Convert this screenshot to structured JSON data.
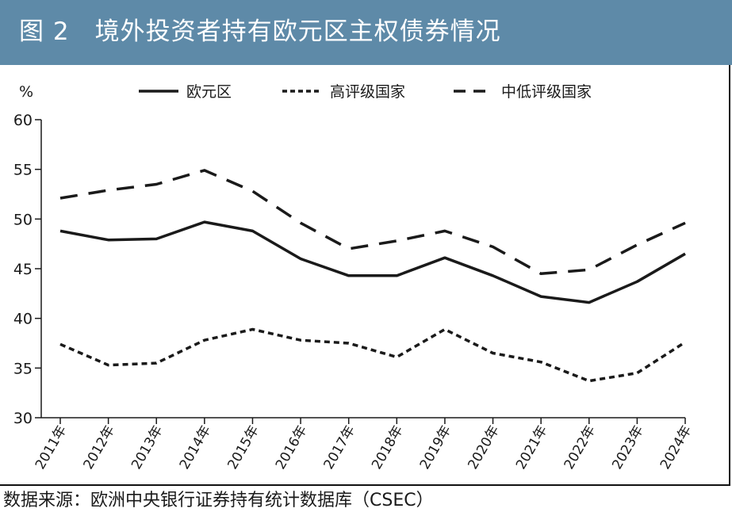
{
  "figure": {
    "title": "图 2　境外投资者持有欧元区主权债券情况",
    "source": "数据来源：欧洲中央银行证券持有统计数据库（CSEC）"
  },
  "colors": {
    "header_bg": "#5e8aa8",
    "line": "#1a1a1a"
  },
  "chart_data": {
    "type": "line",
    "title": "境外投资者持有欧元区主权债券情况",
    "ylabel": "%",
    "xlabel": "",
    "ylim": [
      30,
      60
    ],
    "yticks": [
      30,
      35,
      40,
      45,
      50,
      55,
      60
    ],
    "categories": [
      "2011年",
      "2012年",
      "2013年",
      "2014年",
      "2015年",
      "2016年",
      "2017年",
      "2018年",
      "2019年",
      "2020年",
      "2021年",
      "2022年",
      "2023年",
      "2024年"
    ],
    "legend_position": "top",
    "series": [
      {
        "name": "欧元区",
        "style": "solid",
        "values": [
          48.8,
          47.9,
          48.0,
          49.7,
          48.8,
          46.0,
          44.3,
          44.3,
          46.1,
          44.3,
          42.2,
          41.6,
          43.7,
          46.5
        ]
      },
      {
        "name": "高评级国家",
        "style": "dotted",
        "values": [
          37.4,
          35.3,
          35.5,
          37.8,
          38.9,
          37.8,
          37.5,
          36.1,
          38.9,
          36.5,
          35.6,
          33.7,
          34.5,
          37.6
        ]
      },
      {
        "name": "中低评级国家",
        "style": "dashed",
        "values": [
          52.1,
          52.9,
          53.5,
          54.9,
          52.8,
          49.6,
          47.0,
          47.8,
          48.8,
          47.2,
          44.5,
          44.9,
          47.4,
          49.6
        ]
      }
    ]
  }
}
